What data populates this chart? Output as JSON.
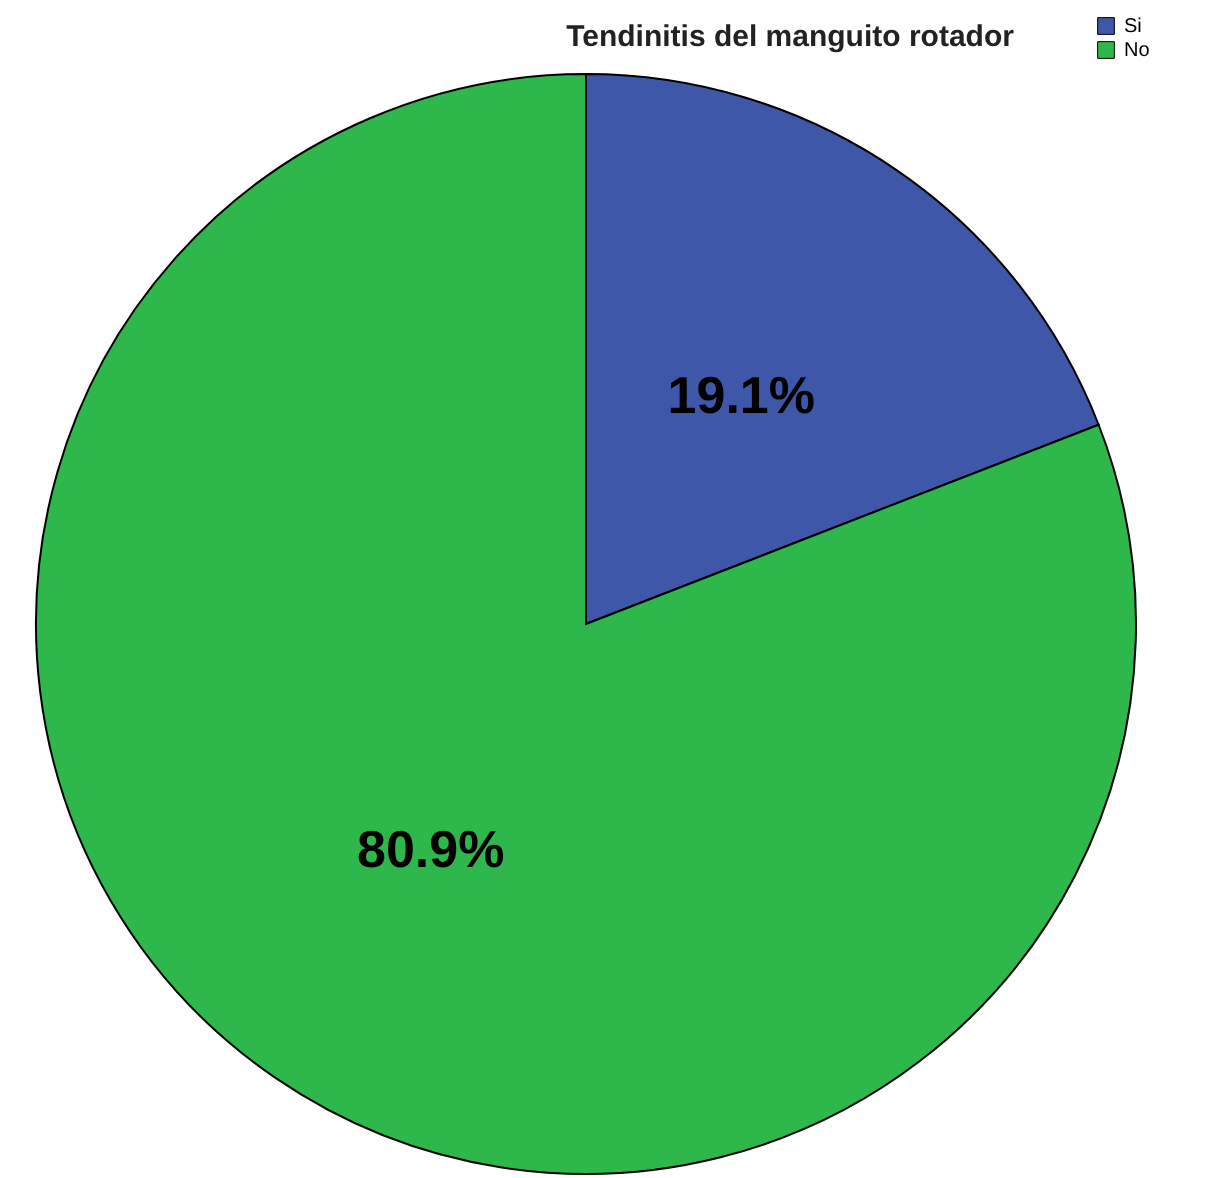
{
  "chart_data": {
    "type": "pie",
    "title": "Tendinitis del manguito rotador",
    "categories": [
      "Si",
      "No"
    ],
    "values": [
      19.1,
      80.9
    ],
    "colors": [
      "#3f57a8",
      "#2eb84b"
    ],
    "value_labels": [
      "19.1%",
      "80.9%"
    ],
    "legend": "top right"
  }
}
